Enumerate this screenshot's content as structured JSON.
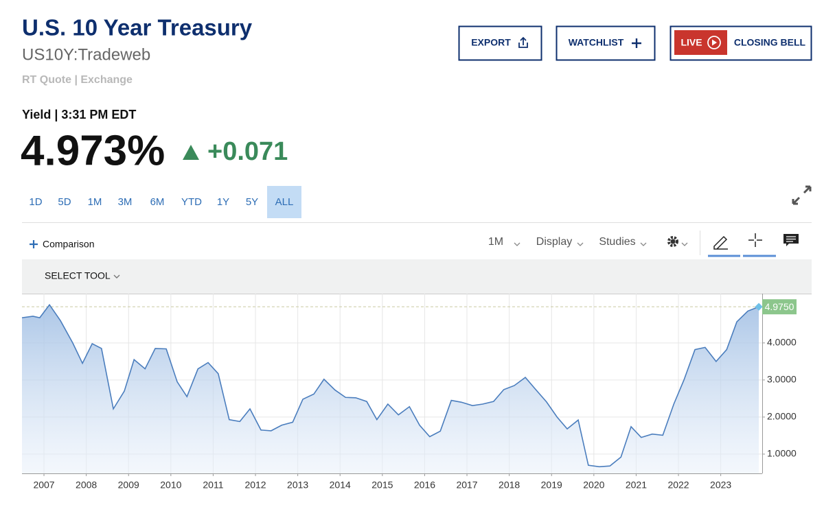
{
  "header": {
    "title": "U.S. 10 Year Treasury",
    "symbol": "US10Y:Tradeweb",
    "quote_source": "RT Quote | Exchange"
  },
  "buttons": {
    "export": "EXPORT",
    "watchlist": "WATCHLIST",
    "live": "LIVE",
    "closing_bell": "CLOSING BELL"
  },
  "quote": {
    "label": "Yield | 3:31 PM EDT",
    "price": "4.973%",
    "change": "+0.071"
  },
  "range_tabs": [
    "1D",
    "5D",
    "1M",
    "3M",
    "6M",
    "YTD",
    "1Y",
    "5Y",
    "ALL"
  ],
  "selected_range": "ALL",
  "toolbar": {
    "comparison": "Comparison",
    "interval": "1M",
    "display": "Display",
    "studies": "Studies",
    "select_tool": "SELECT TOOL"
  },
  "chart_data": {
    "type": "area",
    "color": "#4a7dbd",
    "grid": true,
    "x": [
      2006.48,
      2006.74,
      2006.9,
      2007.13,
      2007.39,
      2007.68,
      2007.91,
      2008.14,
      2008.36,
      2008.64,
      2008.9,
      2009.13,
      2009.39,
      2009.63,
      2009.89,
      2010.15,
      2010.38,
      2010.64,
      2010.88,
      2011.12,
      2011.38,
      2011.63,
      2011.87,
      2012.13,
      2012.37,
      2012.62,
      2012.88,
      2013.12,
      2013.38,
      2013.62,
      2013.88,
      2014.13,
      2014.37,
      2014.63,
      2014.87,
      2015.13,
      2015.38,
      2015.64,
      2015.88,
      2016.12,
      2016.37,
      2016.63,
      2016.87,
      2017.13,
      2017.37,
      2017.63,
      2017.87,
      2018.12,
      2018.38,
      2018.62,
      2018.88,
      2019.13,
      2019.37,
      2019.63,
      2019.87,
      2020.13,
      2020.38,
      2020.64,
      2020.88,
      2021.12,
      2021.38,
      2021.63,
      2021.89,
      2022.13,
      2022.39,
      2022.63,
      2022.89,
      2023.14,
      2023.38,
      2023.64,
      2023.9
    ],
    "values": [
      4.68,
      4.72,
      4.68,
      5.03,
      4.6,
      4.0,
      3.45,
      3.98,
      3.85,
      2.22,
      2.7,
      3.55,
      3.3,
      3.85,
      3.84,
      2.95,
      2.55,
      3.3,
      3.47,
      3.17,
      1.93,
      1.88,
      2.22,
      1.65,
      1.63,
      1.78,
      1.86,
      2.48,
      2.62,
      3.02,
      2.73,
      2.53,
      2.52,
      2.42,
      1.93,
      2.35,
      2.06,
      2.28,
      1.78,
      1.47,
      1.62,
      2.45,
      2.4,
      2.31,
      2.35,
      2.42,
      2.74,
      2.85,
      3.07,
      2.75,
      2.41,
      2.0,
      1.68,
      1.92,
      0.7,
      0.66,
      0.68,
      0.92,
      1.74,
      1.45,
      1.54,
      1.51,
      2.35,
      3.0,
      3.82,
      3.88,
      3.5,
      3.82,
      4.57,
      4.86,
      4.975
    ],
    "xlim": [
      2006.48,
      2023.98
    ],
    "ylim": [
      0.48,
      5.33
    ],
    "xticks": [
      2007,
      2008,
      2009,
      2010,
      2011,
      2012,
      2013,
      2014,
      2015,
      2016,
      2017,
      2018,
      2019,
      2020,
      2021,
      2022,
      2023
    ],
    "yticks": [
      {
        "value": 1,
        "label": "1.0000"
      },
      {
        "value": 2,
        "label": "2.0000"
      },
      {
        "value": 3,
        "label": "3.0000"
      },
      {
        "value": 4,
        "label": "4.0000"
      }
    ],
    "last_value": {
      "value": 4.975,
      "label": "4.9750"
    }
  }
}
